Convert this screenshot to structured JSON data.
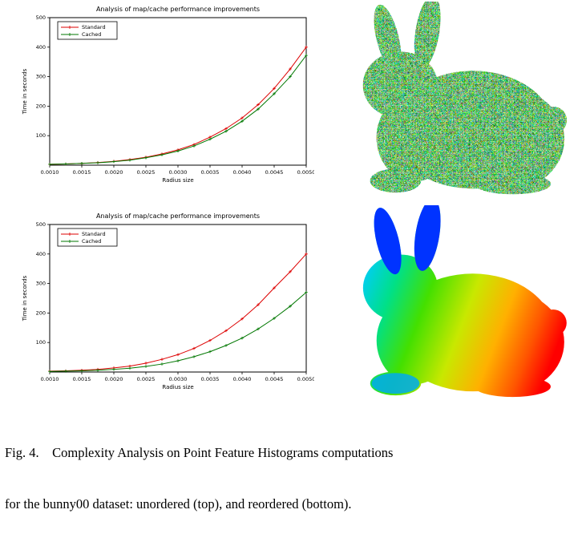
{
  "caption": {
    "line1": "Fig. 4.    Complexity Analysis on Point Feature Histograms computations",
    "line2": "for the bunny00 dataset: unordered (top), and reordered (bottom)."
  },
  "renders": {
    "top": {
      "name": "bunny-unordered-render",
      "style": "random-noise-point-cloud",
      "dominant_colors": [
        "#3bbf3b",
        "#ff4444",
        "#4466ff",
        "#ffee44"
      ]
    },
    "bottom": {
      "name": "bunny-reordered-render",
      "style": "rainbow-gradient-point-cloud",
      "gradient": [
        "#0033ff",
        "#00ccff",
        "#00e088",
        "#44e000",
        "#c8e800",
        "#ffb000",
        "#ff5500",
        "#ff0000"
      ]
    }
  },
  "chart_data": [
    {
      "type": "line",
      "title": "Analysis of map/cache performance improvements",
      "xlabel": "Radius size",
      "ylabel": "Time in seconds",
      "xlim": [
        0.001,
        0.005
      ],
      "ylim": [
        0,
        500
      ],
      "xticks": [
        0.001,
        0.0015,
        0.002,
        0.0025,
        0.003,
        0.0035,
        0.004,
        0.0045,
        0.005
      ],
      "yticks": [
        100,
        200,
        300,
        400,
        500
      ],
      "grid": false,
      "legend_position": "upper-left",
      "x": [
        0.001,
        0.00125,
        0.0015,
        0.00175,
        0.002,
        0.00225,
        0.0025,
        0.00275,
        0.003,
        0.00325,
        0.0035,
        0.00375,
        0.004,
        0.00425,
        0.0045,
        0.00475,
        0.005
      ],
      "series": [
        {
          "name": "Standard",
          "color": "#dd0000",
          "values": [
            3,
            4,
            6,
            9,
            13,
            19,
            27,
            38,
            52,
            70,
            95,
            124,
            160,
            205,
            260,
            326,
            400
          ]
        },
        {
          "name": "Cached",
          "color": "#007700",
          "values": [
            3,
            4,
            6,
            8,
            12,
            17,
            25,
            35,
            48,
            65,
            88,
            115,
            149,
            190,
            242,
            300,
            372
          ]
        }
      ]
    },
    {
      "type": "line",
      "title": "Analysis of map/cache performance improvements",
      "xlabel": "Radius size",
      "ylabel": "Time in seconds",
      "xlim": [
        0.001,
        0.005
      ],
      "ylim": [
        0,
        500
      ],
      "xticks": [
        0.001,
        0.0015,
        0.002,
        0.0025,
        0.003,
        0.0035,
        0.004,
        0.0045,
        0.005
      ],
      "yticks": [
        100,
        200,
        300,
        400,
        500
      ],
      "grid": false,
      "legend_position": "upper-left",
      "x": [
        0.001,
        0.00125,
        0.0015,
        0.00175,
        0.002,
        0.00225,
        0.0025,
        0.00275,
        0.003,
        0.00325,
        0.0035,
        0.00375,
        0.004,
        0.00425,
        0.0045,
        0.00475,
        0.005
      ],
      "series": [
        {
          "name": "Standard",
          "color": "#dd0000",
          "values": [
            3,
            4,
            6,
            9,
            14,
            20,
            30,
            43,
            59,
            80,
            107,
            140,
            180,
            228,
            285,
            340,
            400
          ]
        },
        {
          "name": "Cached",
          "color": "#007700",
          "values": [
            2,
            3,
            4,
            6,
            9,
            13,
            19,
            27,
            38,
            52,
            69,
            90,
            115,
            146,
            182,
            223,
            270
          ]
        }
      ]
    }
  ]
}
